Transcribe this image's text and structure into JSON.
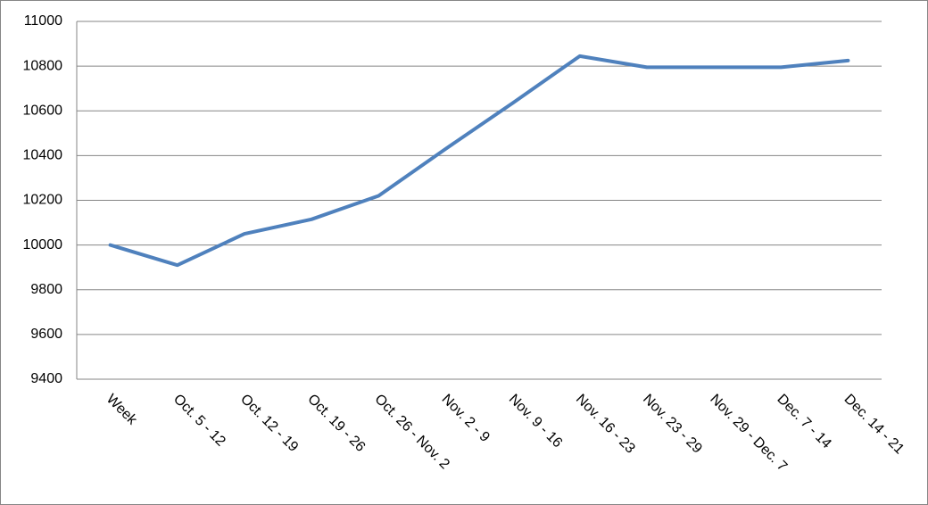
{
  "chart_data": {
    "type": "line",
    "categories": [
      "Week",
      "Oct. 5 - 12",
      "Oct. 12 - 19",
      "Oct. 19 - 26",
      "Oct. 26 - Nov. 2",
      "Nov. 2 - 9",
      "Nov. 9 - 16",
      "Nov. 16 - 23",
      "Nov. 23 - 29",
      "Nov. 29 - Dec. 7",
      "Dec. 7 - 14",
      "Dec. 14 - 21"
    ],
    "series": [
      {
        "color": "#4f81bd",
        "values": [
          10000,
          9910,
          10050,
          10115,
          10220,
          10430,
          10635,
          10845,
          10795,
          10795,
          10795,
          10825
        ]
      }
    ],
    "ylim": [
      9400,
      11000
    ],
    "yticks": [
      9400,
      9600,
      9800,
      10000,
      10200,
      10400,
      10600,
      10800,
      11000
    ],
    "grid": true
  }
}
